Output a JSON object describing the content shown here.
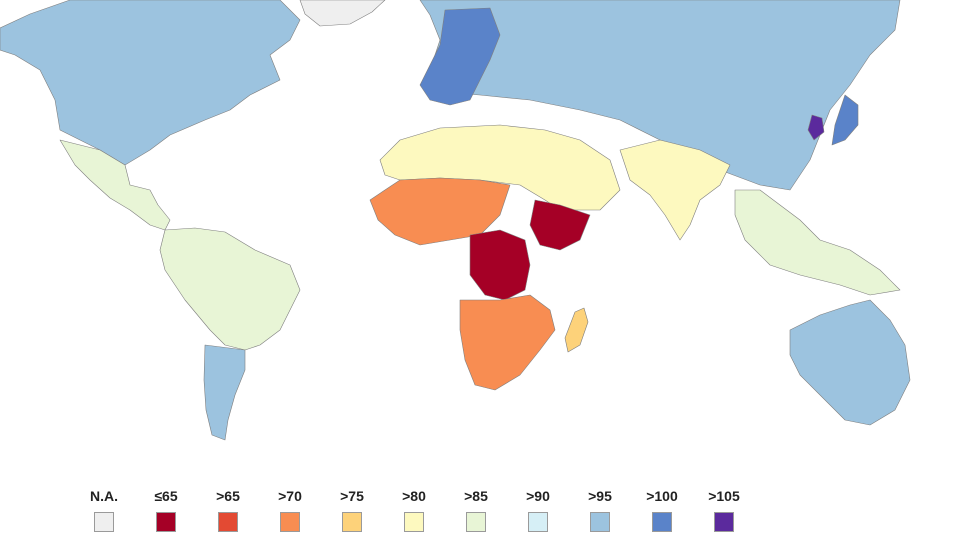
{
  "legend": {
    "items": [
      {
        "label": "N.A.",
        "color": "#efefef"
      },
      {
        "label": "≤65",
        "color": "#a50026"
      },
      {
        "label": ">65",
        "color": "#e34a33"
      },
      {
        "label": ">70",
        "color": "#f88d52"
      },
      {
        "label": ">75",
        "color": "#fdd27a"
      },
      {
        "label": ">80",
        "color": "#fdf9bf"
      },
      {
        "label": ">85",
        "color": "#e8f5d6"
      },
      {
        "label": ">90",
        "color": "#d6eff6"
      },
      {
        "label": ">95",
        "color": "#9cc3df"
      },
      {
        "label": ">100",
        "color": "#5a83c9"
      },
      {
        "label": ">105",
        "color": "#5b2a9d"
      }
    ]
  },
  "map": {
    "regions": [
      {
        "name": "greenland",
        "color": "#efefef"
      },
      {
        "name": "north-america",
        "color": "#9cc3df"
      },
      {
        "name": "mexico-central-america",
        "color": "#e8f5d6"
      },
      {
        "name": "south-america",
        "color": "#e8f5d6"
      },
      {
        "name": "south-cone",
        "color": "#9cc3df"
      },
      {
        "name": "europe-russia-china",
        "color": "#9cc3df"
      },
      {
        "name": "western-europe",
        "color": "#5a83c9"
      },
      {
        "name": "north-africa-middle-east",
        "color": "#fdf9bf"
      },
      {
        "name": "south-asia",
        "color": "#fdf9bf"
      },
      {
        "name": "west-africa",
        "color": "#f88d52"
      },
      {
        "name": "central-africa",
        "color": "#a50026"
      },
      {
        "name": "east-africa",
        "color": "#a50026"
      },
      {
        "name": "southern-africa",
        "color": "#f88d52"
      },
      {
        "name": "madagascar",
        "color": "#fdd27a"
      },
      {
        "name": "southeast-asia",
        "color": "#e8f5d6"
      },
      {
        "name": "australia",
        "color": "#9cc3df"
      },
      {
        "name": "japan",
        "color": "#5a83c9"
      },
      {
        "name": "korea",
        "color": "#5b2a9d"
      }
    ]
  }
}
